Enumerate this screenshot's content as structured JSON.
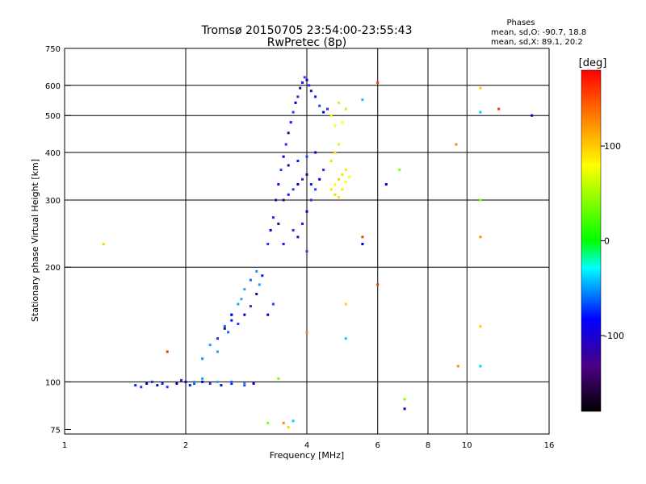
{
  "header": {
    "title_line1": "Tromsø 20150705 23:54:00-23:55:43",
    "title_line2": "RwPretec (8p)",
    "info_title": "Phases",
    "info_line1": "mean, sd,O: -90.7, 18.8",
    "info_line2": "mean, sd,X: 89.1, 20.2"
  },
  "colorbar": {
    "label": "[deg]",
    "tick_labels": [
      "100",
      "0",
      "-100"
    ],
    "tick_values": [
      100,
      0,
      -100
    ],
    "range": [
      -180,
      180
    ]
  },
  "chart_data": {
    "type": "scatter",
    "title": "Tromsø 20150705 23:54:00-23:55:43",
    "subtitle": "RwPretec (8p)",
    "xlabel": "Frequency [MHz]",
    "ylabel": "Stationary phase Virtual Height [km]",
    "xscale": "log",
    "yscale": "log",
    "xlim": [
      1,
      16
    ],
    "ylim": [
      73,
      750
    ],
    "x_ticks": [
      1,
      2,
      4,
      6,
      8,
      10,
      16
    ],
    "y_ticks": [
      75,
      100,
      200,
      300,
      400,
      500,
      600,
      750
    ],
    "x_tick_labels": [
      "1",
      "2",
      "4",
      "6",
      "8",
      "10",
      "16"
    ],
    "y_tick_labels": [
      "75",
      "100",
      "200",
      "300",
      "400",
      "500",
      "600",
      "750"
    ],
    "grid": true,
    "series": [
      {
        "role": "o_mode_blue",
        "points": [
          [
            1.5,
            98
          ],
          [
            1.55,
            97
          ],
          [
            1.6,
            99
          ],
          [
            1.65,
            100
          ],
          [
            1.7,
            98
          ],
          [
            1.75,
            99
          ],
          [
            1.8,
            97
          ],
          [
            1.9,
            99
          ],
          [
            1.95,
            101
          ],
          [
            2.0,
            100
          ],
          [
            2.05,
            98
          ],
          [
            2.1,
            99
          ],
          [
            2.2,
            100
          ],
          [
            2.3,
            99
          ],
          [
            2.45,
            98
          ],
          [
            2.6,
            99
          ],
          [
            2.8,
            98
          ],
          [
            2.95,
            99
          ],
          [
            2.4,
            130
          ],
          [
            2.5,
            138
          ],
          [
            2.6,
            145
          ],
          [
            2.7,
            142
          ],
          [
            2.8,
            150
          ],
          [
            2.9,
            158
          ],
          [
            3.0,
            170
          ],
          [
            3.1,
            190
          ],
          [
            3.2,
            230
          ],
          [
            3.25,
            250
          ],
          [
            3.3,
            270
          ],
          [
            3.35,
            300
          ],
          [
            3.4,
            330
          ],
          [
            3.45,
            360
          ],
          [
            3.5,
            390
          ],
          [
            3.55,
            420
          ],
          [
            3.6,
            450
          ],
          [
            3.65,
            480
          ],
          [
            3.7,
            510
          ],
          [
            3.75,
            540
          ],
          [
            3.8,
            560
          ],
          [
            3.85,
            590
          ],
          [
            3.9,
            610
          ],
          [
            3.95,
            630
          ],
          [
            4.0,
            620
          ],
          [
            4.05,
            600
          ],
          [
            4.1,
            580
          ],
          [
            4.2,
            560
          ],
          [
            4.3,
            530
          ],
          [
            4.4,
            510
          ],
          [
            4.5,
            520
          ],
          [
            3.5,
            300
          ],
          [
            3.6,
            310
          ],
          [
            3.7,
            320
          ],
          [
            3.8,
            330
          ],
          [
            3.9,
            340
          ],
          [
            4.0,
            350
          ],
          [
            4.1,
            330
          ],
          [
            4.2,
            320
          ],
          [
            4.3,
            340
          ],
          [
            4.4,
            360
          ],
          [
            3.6,
            370
          ],
          [
            3.8,
            380
          ],
          [
            4.0,
            390
          ],
          [
            4.2,
            400
          ],
          [
            3.7,
            250
          ],
          [
            3.8,
            240
          ],
          [
            3.9,
            260
          ],
          [
            4.0,
            220
          ],
          [
            4.0,
            280
          ],
          [
            4.1,
            300
          ],
          [
            3.4,
            260
          ],
          [
            3.5,
            230
          ],
          [
            3.3,
            160
          ],
          [
            3.2,
            150
          ]
        ]
      },
      {
        "role": "o_mode_cyan",
        "points": [
          [
            2.2,
            115
          ],
          [
            2.3,
            125
          ],
          [
            2.4,
            120
          ],
          [
            2.5,
            140
          ],
          [
            2.6,
            150
          ],
          [
            2.7,
            160
          ],
          [
            2.8,
            175
          ],
          [
            2.9,
            185
          ],
          [
            3.0,
            195
          ],
          [
            3.05,
            180
          ],
          [
            2.75,
            165
          ],
          [
            2.55,
            135
          ],
          [
            2.1,
            100
          ],
          [
            2.2,
            102
          ],
          [
            2.4,
            100
          ],
          [
            2.6,
            100
          ],
          [
            2.8,
            99
          ]
        ]
      },
      {
        "role": "x_mode_yellow",
        "points": [
          [
            4.6,
            320
          ],
          [
            4.7,
            330
          ],
          [
            4.8,
            340
          ],
          [
            4.9,
            350
          ],
          [
            5.0,
            360
          ],
          [
            5.1,
            345
          ],
          [
            4.7,
            310
          ],
          [
            4.8,
            305
          ],
          [
            4.9,
            320
          ],
          [
            5.0,
            335
          ],
          [
            4.6,
            380
          ],
          [
            4.7,
            400
          ],
          [
            4.8,
            420
          ],
          [
            4.9,
            480
          ],
          [
            5.0,
            520
          ],
          [
            4.8,
            540
          ],
          [
            4.6,
            500
          ],
          [
            4.7,
            470
          ]
        ]
      },
      {
        "role": "scattered",
        "points": [
          [
            1.25,
            230
          ],
          [
            5.5,
            550
          ],
          [
            6.0,
            610
          ],
          [
            6.3,
            330
          ],
          [
            6.8,
            360
          ],
          [
            9.4,
            420
          ],
          [
            10.8,
            590
          ],
          [
            10.8,
            510
          ],
          [
            12.0,
            520
          ],
          [
            14.5,
            500
          ],
          [
            10.8,
            300
          ],
          [
            10.8,
            240
          ],
          [
            5.0,
            160
          ],
          [
            5.0,
            130
          ],
          [
            6.0,
            180
          ],
          [
            7.0,
            85
          ],
          [
            7.0,
            90
          ],
          [
            9.5,
            110
          ],
          [
            10.8,
            140
          ],
          [
            10.8,
            110
          ],
          [
            5.5,
            240
          ],
          [
            5.5,
            230
          ],
          [
            3.2,
            78
          ],
          [
            3.5,
            78
          ],
          [
            3.6,
            76
          ],
          [
            3.7,
            79
          ],
          [
            1.8,
            120
          ],
          [
            2.6,
            150
          ],
          [
            3.4,
            102
          ],
          [
            4.0,
            135
          ]
        ]
      }
    ]
  }
}
